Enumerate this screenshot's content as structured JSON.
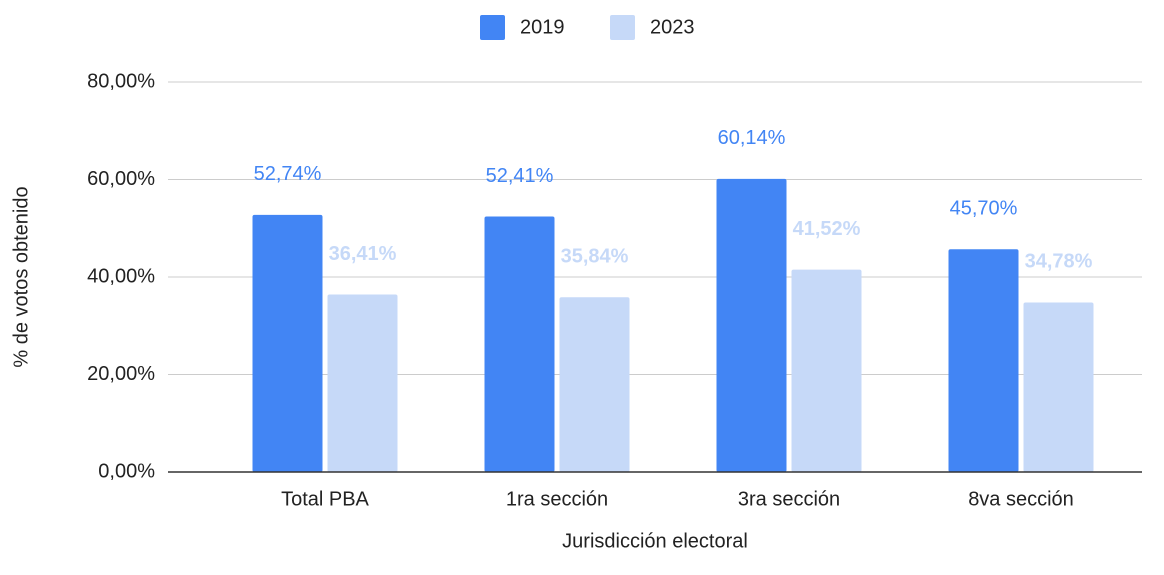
{
  "chart_data": {
    "type": "bar",
    "xlabel": "Jurisdicción electoral",
    "ylabel": "% de votos obtenido",
    "categories": [
      "Total PBA",
      "1ra sección",
      "3ra sección",
      "8va sección"
    ],
    "series": [
      {
        "name": "2019",
        "color": "#4285f4",
        "values": [
          52.74,
          52.41,
          60.14,
          45.7
        ],
        "value_labels": [
          "52,74%",
          "52,41%",
          "60,14%",
          "45,70%"
        ]
      },
      {
        "name": "2023",
        "color": "#c6d9f8",
        "values": [
          36.41,
          35.84,
          41.52,
          34.78
        ],
        "value_labels": [
          "36,41%",
          "35,84%",
          "41,52%",
          "34,78%"
        ]
      }
    ],
    "ylim": [
      0,
      80
    ],
    "yticks": [
      {
        "value": 0,
        "label": "0,00%"
      },
      {
        "value": 20,
        "label": "20,00%"
      },
      {
        "value": 40,
        "label": "40,00%"
      },
      {
        "value": 60,
        "label": "60,00%"
      },
      {
        "value": 80,
        "label": "80,00%"
      }
    ],
    "grid": true,
    "legend": "top"
  }
}
